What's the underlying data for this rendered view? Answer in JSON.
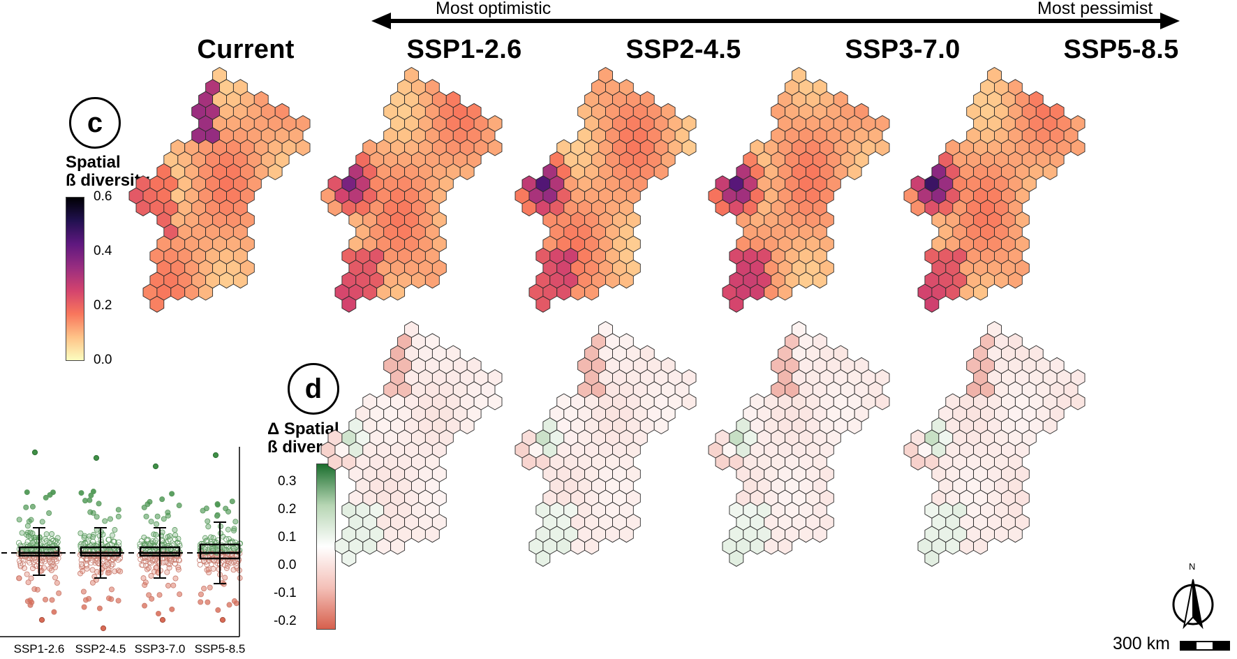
{
  "figure": {
    "gradient_arrow": {
      "left_label": "Most optimistic",
      "right_label": "Most pessimist"
    },
    "scenario_titles": [
      "Current",
      "SSP1-2.6",
      "SSP2-4.5",
      "SSP3-7.0",
      "SSP5-8.5"
    ],
    "panel_c": {
      "letter": "c",
      "legend_title_line1": "Spatial",
      "legend_title_line2": "ß diversity",
      "legend_ticks": [
        "0.6",
        "0.4",
        "0.2",
        "0.0"
      ],
      "legend_colors": [
        "#fcfdbf",
        "#fec287",
        "#f8765c",
        "#d3436e",
        "#982d80",
        "#5f187f",
        "#221150",
        "#000004"
      ]
    },
    "panel_d": {
      "letter": "d",
      "legend_title_line1": "Δ Spatial",
      "legend_title_line2": "ß diversity",
      "legend_ticks": [
        "0.3",
        "0.2",
        "0.1",
        "0.0",
        "-0.1",
        "-0.2"
      ],
      "legend_colors": [
        "#d6604d",
        "#f4c0b8",
        "#ffffff",
        "#b7d6b4",
        "#1b6e2e"
      ]
    },
    "boxplot": {
      "categories": [
        "SSP1-2.6",
        "SSP2-4.5",
        "SSP3-7.0",
        "SSP5-8.5"
      ],
      "y_range": [
        -0.27,
        0.37
      ],
      "reference_line": 0.0
    },
    "scale_bar": {
      "label": "300 km"
    },
    "north_arrow": {
      "label": "N"
    }
  },
  "chart_data": {
    "type": "box",
    "categories": [
      "SSP1-2.6",
      "SSP2-4.5",
      "SSP3-7.0",
      "SSP5-8.5"
    ],
    "series": [
      {
        "q1": -0.01,
        "median": 0.0,
        "q3": 0.02,
        "whisker_low": -0.08,
        "whisker_high": 0.09,
        "max": 0.36,
        "min": -0.24
      },
      {
        "q1": -0.01,
        "median": 0.0,
        "q3": 0.02,
        "whisker_low": -0.09,
        "whisker_high": 0.09,
        "max": 0.34,
        "min": -0.27
      },
      {
        "q1": -0.01,
        "median": 0.0,
        "q3": 0.02,
        "whisker_low": -0.09,
        "whisker_high": 0.09,
        "max": 0.31,
        "min": -0.24
      },
      {
        "q1": -0.02,
        "median": 0.0,
        "q3": 0.03,
        "whisker_low": -0.11,
        "whisker_high": 0.11,
        "max": 0.35,
        "min": -0.24
      }
    ],
    "ylim": [
      -0.27,
      0.37
    ],
    "xlabel": "",
    "ylabel": ""
  }
}
